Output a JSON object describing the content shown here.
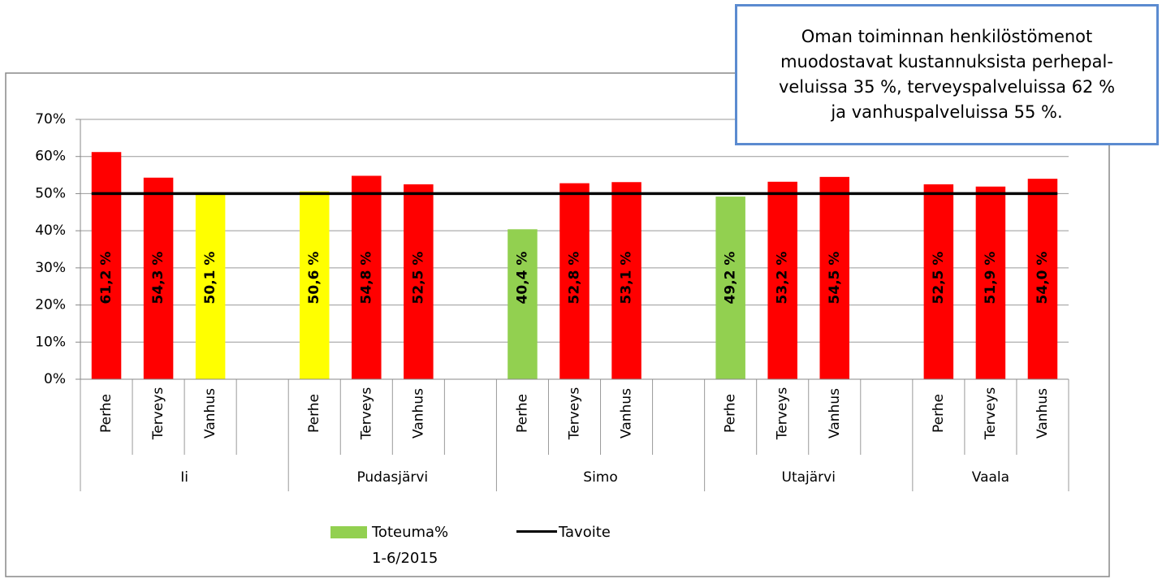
{
  "chart_data": {
    "type": "bar",
    "annotation": [
      "Oman toiminnan henkilöstömenot",
      "muodostavat kustannuksista perhepal-",
      "veluissa 35 %, terveyspalveluissa 62 %",
      "ja vanhuspalveluissa 55 %."
    ],
    "groups": [
      {
        "name": "Ii",
        "categories": [
          "Perhe",
          "Terveys",
          "Vanhus",
          null
        ],
        "values": [
          61.2,
          54.3,
          50.1,
          null
        ],
        "value_labels": [
          "61,2 %",
          "54,3 %",
          "50,1 %",
          null
        ],
        "colors": [
          "#ff0000",
          "#ff0000",
          "#ffff00",
          null
        ]
      },
      {
        "name": "Pudasjärvi",
        "categories": [
          "Perhe",
          "Terveys",
          "Vanhus",
          null
        ],
        "values": [
          50.6,
          54.8,
          52.5,
          null
        ],
        "value_labels": [
          "50,6 %",
          "54,8 %",
          "52,5 %",
          null
        ],
        "colors": [
          "#ffff00",
          "#ff0000",
          "#ff0000",
          null
        ]
      },
      {
        "name": "Simo",
        "categories": [
          "Perhe",
          "Terveys",
          "Vanhus",
          null
        ],
        "values": [
          40.4,
          52.8,
          53.1,
          null
        ],
        "value_labels": [
          "40,4 %",
          "52,8 %",
          "53,1 %",
          null
        ],
        "colors": [
          "#92d050",
          "#ff0000",
          "#ff0000",
          null
        ]
      },
      {
        "name": "Utajärvi",
        "categories": [
          "Perhe",
          "Terveys",
          "Vanhus",
          null
        ],
        "values": [
          49.2,
          53.2,
          54.5,
          null
        ],
        "value_labels": [
          "49,2 %",
          "53,2 %",
          "54,5 %",
          null
        ],
        "colors": [
          "#92d050",
          "#ff0000",
          "#ff0000",
          null
        ]
      },
      {
        "name": "Vaala",
        "categories": [
          "Perhe",
          "Terveys",
          "Vanhus"
        ],
        "values": [
          52.5,
          51.9,
          54.0
        ],
        "value_labels": [
          "52,5 %",
          "51,9 %",
          "54,0 %"
        ],
        "colors": [
          "#ff0000",
          "#ff0000",
          "#ff0000"
        ]
      }
    ],
    "legend_bar": {
      "name": "Toteuma% 1-6/2015",
      "color": "#92d050"
    },
    "target": {
      "name": "Tavoite",
      "color": "#000000",
      "value": 50
    },
    "ylim": [
      0,
      70
    ],
    "yticks": [
      {
        "value": 0,
        "label": "0%"
      },
      {
        "value": 10,
        "label": "10%"
      },
      {
        "value": 20,
        "label": "20%"
      },
      {
        "value": 30,
        "label": "30%"
      },
      {
        "value": 40,
        "label": "40%"
      },
      {
        "value": 50,
        "label": "50%"
      },
      {
        "value": 60,
        "label": "60%"
      },
      {
        "value": 70,
        "label": "70%"
      }
    ],
    "grid": true
  }
}
